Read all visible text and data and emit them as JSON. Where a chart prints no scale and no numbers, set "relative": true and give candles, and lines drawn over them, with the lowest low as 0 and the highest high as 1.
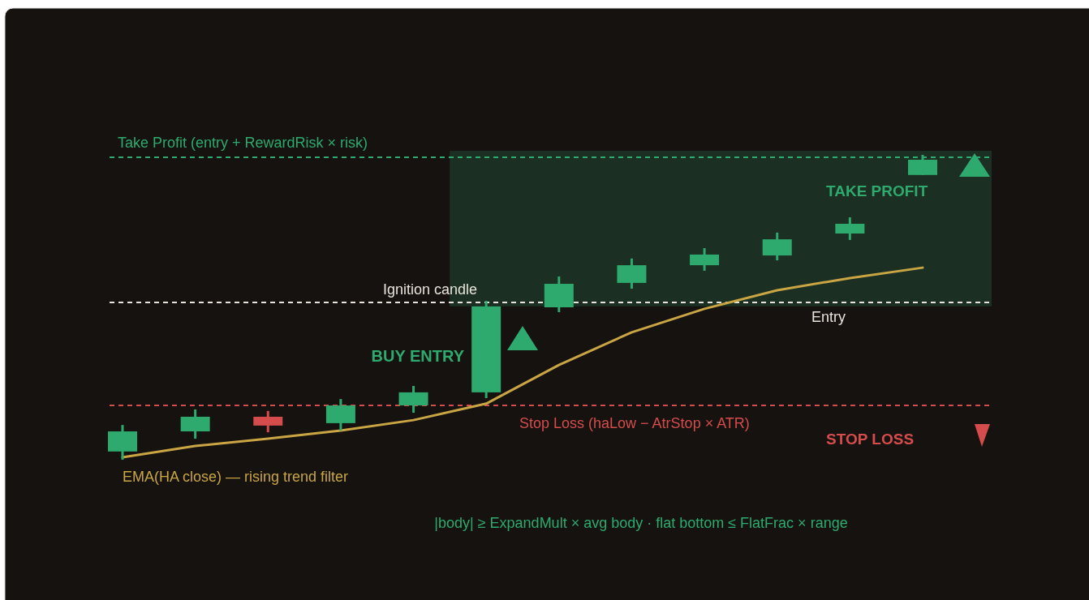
{
  "chart_data": {
    "type": "candlestick",
    "relative": true,
    "categories": [
      null,
      null,
      null,
      null,
      null,
      null,
      null,
      null,
      null,
      null,
      null,
      null
    ],
    "series": [
      {
        "ohlc": [
          [
            0.027,
            0.114,
            0,
            0.093
          ],
          [
            0.093,
            0.165,
            0.069,
            0.141
          ],
          [
            0.141,
            0.16,
            0.09,
            0.112
          ],
          [
            0.12,
            0.199,
            0.096,
            0.178
          ],
          [
            0.178,
            0.242,
            0.154,
            0.221
          ],
          [
            0.221,
            0.521,
            0.202,
            0.503
          ],
          [
            0.5,
            0.601,
            0.484,
            0.577
          ],
          [
            0.58,
            0.66,
            0.561,
            0.638
          ],
          [
            0.638,
            0.694,
            0.62,
            0.673
          ],
          [
            0.67,
            0.745,
            0.654,
            0.723
          ],
          [
            0.742,
            0.795,
            0.721,
            0.774
          ],
          [
            0.934,
            1,
            0.934,
            0.984
          ]
        ],
        "colors": [
          "#2eaa6e",
          "#2eaa6e",
          "#d44c4c",
          "#2eaa6e",
          "#2eaa6e",
          "#2eaa6e",
          "#2eaa6e",
          "#2eaa6e",
          "#2eaa6e",
          "#2eaa6e",
          "#2eaa6e",
          "#2eaa6e"
        ]
      },
      {
        "type": "line",
        "name": "EMA(HA close) — rising trend filter",
        "color": "#c9a544",
        "values": [
          0.008,
          0.045,
          0.069,
          0.096,
          0.13,
          0.184,
          0.311,
          0.418,
          0.495,
          0.556,
          0.596,
          0.63
        ]
      }
    ],
    "ref_lines": [
      {
        "axis": "y",
        "value": 0.992,
        "label": "Take Profit (entry + RewardRisk × risk)",
        "color": "#2eaa6e",
        "line_style": "dashed"
      },
      {
        "axis": "y",
        "value": 0.516,
        "label": "Entry",
        "color": "#e8e4dc",
        "line_style": "dashed"
      },
      {
        "axis": "y",
        "value": 0.178,
        "label": "Stop Loss (haLow − AtrStop × ATR)",
        "color": "#d44c4c",
        "line_style": "dashed"
      }
    ],
    "bands": [
      {
        "axis": "y",
        "from": 0.503,
        "to": 1,
        "color": "#1b2f22"
      }
    ],
    "annotations": [
      "Ignition candle",
      "BUY ENTRY",
      "TAKE PROFIT",
      "STOP LOSS",
      "|body| ≥ ExpandMult × avg body · flat bottom ≤ FlatFrac × range"
    ]
  }
}
